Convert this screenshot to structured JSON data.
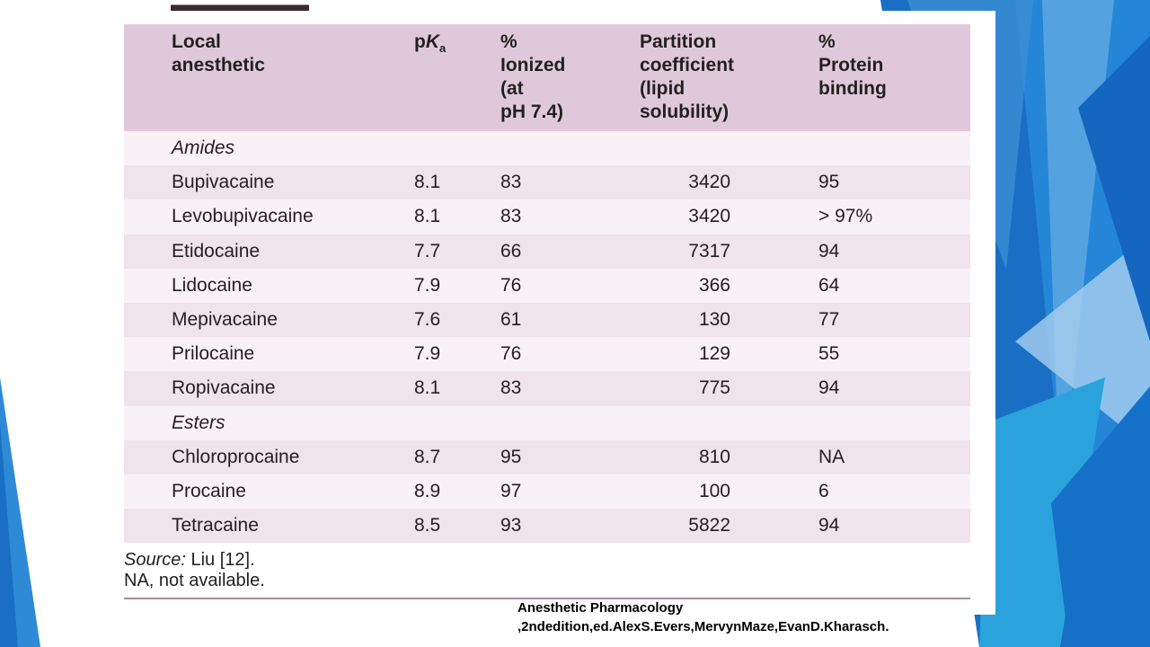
{
  "table": {
    "headers": {
      "drug_line1": "Local",
      "drug_line2": "anesthetic",
      "pka_p": "p",
      "pka_k": "K",
      "pka_sub": "a",
      "ionized_line1": "%",
      "ionized_line2": "Ionized",
      "ionized_line3": "(at",
      "ionized_line4": "pH 7.4)",
      "partition_line1": "Partition",
      "partition_line2": "coefficient",
      "partition_line3": "(lipid",
      "partition_line4": "solubility)",
      "protein_line1": "%",
      "protein_line2": "Protein",
      "protein_line3": "binding"
    },
    "group_amides": "Amides",
    "group_esters": "Esters",
    "amides": [
      {
        "name": "Bupivacaine",
        "pka": "8.1",
        "ionized": "83",
        "partition": "3420",
        "protein": "95"
      },
      {
        "name": "Levobupivacaine",
        "pka": "8.1",
        "ionized": "83",
        "partition": "3420",
        "protein": "> 97%"
      },
      {
        "name": "Etidocaine",
        "pka": "7.7",
        "ionized": "66",
        "partition": "7317",
        "protein": "94"
      },
      {
        "name": "Lidocaine",
        "pka": "7.9",
        "ionized": "76",
        "partition": "366",
        "protein": "64"
      },
      {
        "name": "Mepivacaine",
        "pka": "7.6",
        "ionized": "61",
        "partition": "130",
        "protein": "77"
      },
      {
        "name": "Prilocaine",
        "pka": "7.9",
        "ionized": "76",
        "partition": "129",
        "protein": "55"
      },
      {
        "name": "Ropivacaine",
        "pka": "8.1",
        "ionized": "83",
        "partition": "775",
        "protein": "94"
      }
    ],
    "esters": [
      {
        "name": "Chloroprocaine",
        "pka": "8.7",
        "ionized": "95",
        "partition": "810",
        "protein": "NA"
      },
      {
        "name": "Procaine",
        "pka": "8.9",
        "ionized": "97",
        "partition": "100",
        "protein": "6"
      },
      {
        "name": "Tetracaine",
        "pka": "8.5",
        "ionized": "93",
        "partition": "5822",
        "protein": "94"
      }
    ]
  },
  "notes": {
    "source_label": "Source:",
    "source_text": " Liu [12].",
    "na_note": "NA, not available."
  },
  "citation": {
    "line1": "Anesthetic Pharmacology",
    "line2": ",2ndedition,ed.AlexS.Evers,MervynMaze,EvanD.Kharasch."
  },
  "colors": {
    "header_bg": "#e0c8db",
    "row_shade": "#efe3ec",
    "accent_blue": "#1f7fd0"
  }
}
